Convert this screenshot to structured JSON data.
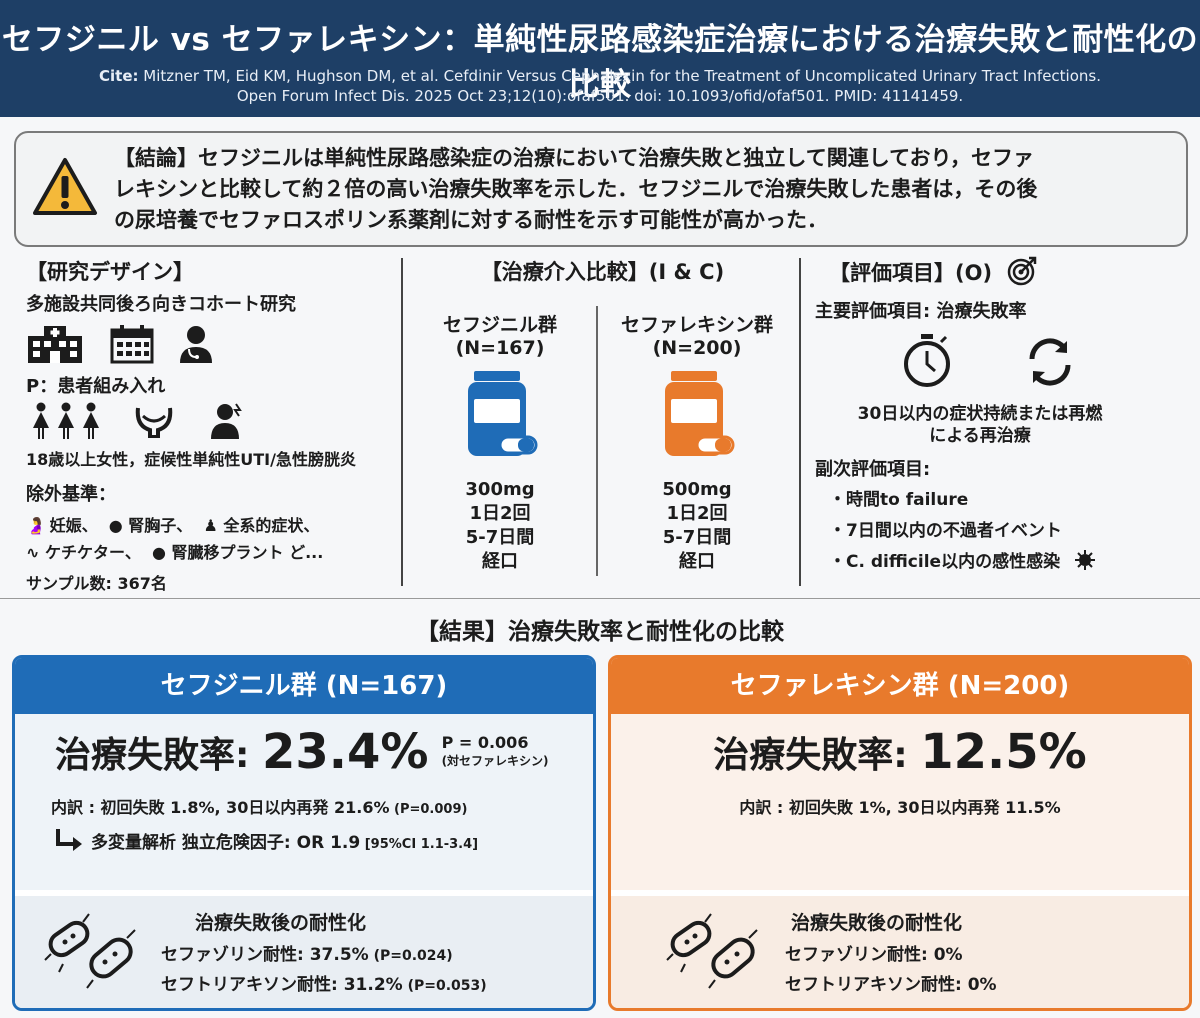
{
  "header": {
    "title": "セフジニル vs セファレキシン：単純性尿路感染症治療における治療失敗と耐性化の比較",
    "cite_label": "Cite:",
    "cite_line1": " Mitzner TM, Eid KM, Hughson DM, et al. Cefdinir Versus Cephalexin for the Treatment of Uncomplicated Urinary Tract Infections.",
    "cite_line2": "Open Forum Infect Dis. 2025 Oct 23;12(10):ofaf501. doi: 10.1093/ofid/ofaf501. PMID: 41141459."
  },
  "conclusion": {
    "icon": "warning-icon",
    "line1": "【結論】セフジニルは単純性尿路感染症の治療において治療失敗と独立して関連しており，セファ",
    "line2": "レキシンと比較して約２倍の高い治療失敗率を示した．セフジニルで治療失敗した患者は，その後",
    "line3": "の尿培養でセファロスポリン系薬剤に対する耐性を示す可能性が高かった．"
  },
  "design": {
    "heading": "【研究デザイン】",
    "type": "多施設共同後ろ向きコホート研究",
    "p_label": "P：患者組み入れ",
    "population": "18歳以上女性，症候性単純性UTI/急性膀胱炎",
    "exclusion_label": "除外基準：",
    "ex1": "妊娠、",
    "ex2": "腎胸子、",
    "ex3": "全系的症状、",
    "ex4": "ケチケター、",
    "ex5": "腎臓移プラント ど...",
    "sample": "サンプル数: 367名"
  },
  "intervention": {
    "heading": "【治療介入比較】(I & C)",
    "groups": [
      {
        "name": "セフジニル群",
        "n": "(N=167)",
        "dose": "300mg",
        "freq": "1日2回",
        "days": "5-7日間",
        "route": "経口",
        "color": "#1f6cb7"
      },
      {
        "name": "セファレキシン群",
        "n": "(N=200)",
        "dose": "500mg",
        "freq": "1日2回",
        "days": "5-7日間",
        "route": "経口",
        "color": "#e87a2c"
      }
    ]
  },
  "outcomes": {
    "heading": "【評価項目】(O)",
    "primary": "主要評価項目: 治療失敗率",
    "primary_desc1": "30日以内の症状持続または再燃",
    "primary_desc2": "による再治療",
    "secondary_label": "副次評価項目:",
    "secondary": [
      "・時間to failure",
      "・7日間以内の不過者イベント",
      "・C. difficile以内の感性感染"
    ]
  },
  "results": {
    "title": "【結果】治療失敗率と耐性化の比較",
    "cefdinir": {
      "header": "セフジニル群 (N=167)",
      "rate_label": "治療失敗率: ",
      "rate_value": "23.4%",
      "p_value": "P = 0.006",
      "p_note": "(対セファレキシン)",
      "breakdown": "内訳 : 初回失敗 1.8%, 30日以内再発 21.6%",
      "breakdown_p": " (P=0.009)",
      "multivar": "多変量解析 独立危険因子: OR 1.9",
      "multivar_ci": " [95%CI 1.1-3.4]",
      "resist_title": "治療失敗後の耐性化",
      "resist1": "セファゾリン耐性: 37.5%",
      "resist1_p": " (P=0.024)",
      "resist2": "セフトリアキソン耐性: 31.2%",
      "resist2_p": " (P=0.053)"
    },
    "cephalexin": {
      "header": "セファレキシン群 (N=200)",
      "rate_label": "治療失敗率: ",
      "rate_value": "12.5%",
      "breakdown": "内訳 : 初回失敗 1%, 30日以内再発 11.5%",
      "resist_title": "治療失敗後の耐性化",
      "resist1": "セファゾリン耐性: 0%",
      "resist2": "セフトリアキソン耐性: 0%"
    }
  }
}
